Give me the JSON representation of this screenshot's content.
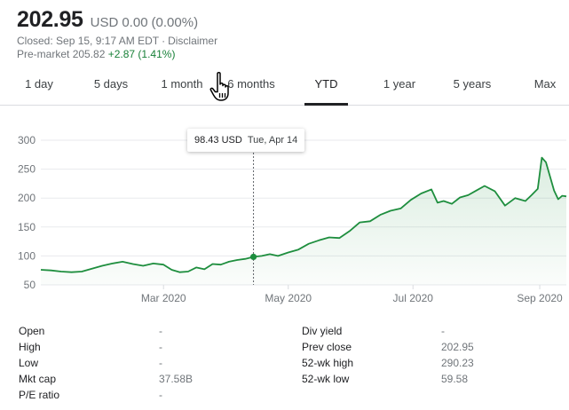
{
  "quote": {
    "price": "202.95",
    "currency": "USD",
    "change": "0.00",
    "change_pct": "(0.00%)",
    "closed_text": "Closed: Sep 15, 9:17 AM EDT",
    "separator": "·",
    "disclaimer": "Disclaimer",
    "premarket_label": "Pre-market",
    "premarket_price": "205.82",
    "premarket_change": "+2.87 (1.41%)"
  },
  "tabs": [
    {
      "label": "1 day"
    },
    {
      "label": "5 days"
    },
    {
      "label": "1 month"
    },
    {
      "label": "6 months"
    },
    {
      "label": "YTD"
    },
    {
      "label": "1 year"
    },
    {
      "label": "5 years"
    },
    {
      "label": "Max"
    }
  ],
  "active_tab": "YTD",
  "tooltip": {
    "value": "98.43 USD",
    "date": "Tue, Apr 14"
  },
  "colors": {
    "line": "#1e8e3e",
    "fill": "#e6f4ea",
    "up": "#188038"
  },
  "chart_data": {
    "type": "area",
    "ylim": [
      50,
      300
    ],
    "y_ticks": [
      50,
      100,
      150,
      200,
      250,
      300
    ],
    "x_labels": [
      {
        "label": "Mar 2020",
        "date": "2020-03-01"
      },
      {
        "label": "May 2020",
        "date": "2020-05-01"
      },
      {
        "label": "Jul 2020",
        "date": "2020-07-01"
      },
      {
        "label": "Sep 2020",
        "date": "2020-09-01"
      }
    ],
    "series": [
      {
        "dates": [
          "2020-01-01",
          "2020-01-06",
          "2020-01-11",
          "2020-01-16",
          "2020-01-21",
          "2020-01-26",
          "2020-01-31",
          "2020-02-05",
          "2020-02-10",
          "2020-02-15",
          "2020-02-20",
          "2020-02-25",
          "2020-03-01",
          "2020-03-05",
          "2020-03-09",
          "2020-03-13",
          "2020-03-17",
          "2020-03-21",
          "2020-03-25",
          "2020-03-29",
          "2020-04-02",
          "2020-04-06",
          "2020-04-10",
          "2020-04-14",
          "2020-04-18",
          "2020-04-22",
          "2020-04-26",
          "2020-05-01",
          "2020-05-06",
          "2020-05-11",
          "2020-05-16",
          "2020-05-21",
          "2020-05-26",
          "2020-05-31",
          "2020-06-05",
          "2020-06-10",
          "2020-06-15",
          "2020-06-20",
          "2020-06-25",
          "2020-06-30",
          "2020-07-05",
          "2020-07-10",
          "2020-07-13",
          "2020-07-16",
          "2020-07-20",
          "2020-07-24",
          "2020-07-28",
          "2020-08-01",
          "2020-08-05",
          "2020-08-10",
          "2020-08-15",
          "2020-08-20",
          "2020-08-25",
          "2020-08-28",
          "2020-08-31",
          "2020-09-02",
          "2020-09-04",
          "2020-09-08",
          "2020-09-10",
          "2020-09-12",
          "2020-09-14"
        ],
        "values": [
          76,
          75,
          73,
          72,
          73,
          78,
          83,
          87,
          90,
          86,
          83,
          87,
          85,
          76,
          72,
          73,
          80,
          77,
          86,
          85,
          90,
          93,
          95,
          98.43,
          100,
          103,
          100,
          106,
          111,
          121,
          127,
          132,
          131,
          143,
          158,
          160,
          171,
          178,
          182,
          197,
          208,
          215,
          192,
          195,
          190,
          201,
          205,
          213,
          221,
          212,
          187,
          200,
          195,
          205,
          216,
          270,
          262,
          213,
          198,
          204,
          202.95
        ]
      }
    ],
    "highlight": {
      "date": "2020-04-14",
      "value": 98.43
    }
  },
  "stats": {
    "left": [
      {
        "label": "Open",
        "value": "-"
      },
      {
        "label": "High",
        "value": "-"
      },
      {
        "label": "Low",
        "value": "-"
      },
      {
        "label": "Mkt cap",
        "value": "37.58B"
      },
      {
        "label": "P/E ratio",
        "value": "-"
      }
    ],
    "right": [
      {
        "label": "Div yield",
        "value": "-"
      },
      {
        "label": "Prev close",
        "value": "202.95"
      },
      {
        "label": "52-wk high",
        "value": "290.23"
      },
      {
        "label": "52-wk low",
        "value": "59.58"
      }
    ]
  }
}
